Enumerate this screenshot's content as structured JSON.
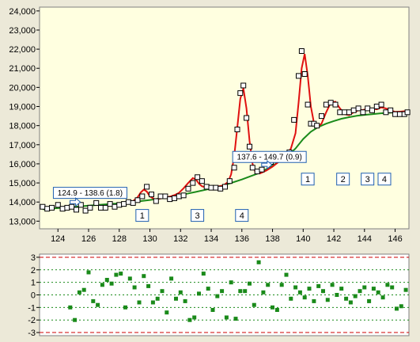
{
  "colors": {
    "background": "#ece9d8",
    "plot_background": "#ffffe0",
    "baseline": "#1a8a1a",
    "peaks_fit": "#e01010",
    "label_border": "#1f5fb0",
    "residual_marker": "#1a8a1a",
    "limit_line": "#cc0000",
    "grid": "#1a8a1a"
  },
  "icons": {
    "callout_arrow": "hollow-right-arrow-icon"
  },
  "chart_data": [
    {
      "type": "scatter",
      "title": "",
      "xlabel": "",
      "ylabel": "",
      "xlim": [
        122.8,
        146.9
      ],
      "ylim": [
        12600,
        24200
      ],
      "xticks": [
        124,
        126,
        128,
        130,
        132,
        134,
        136,
        138,
        140,
        142,
        144,
        146
      ],
      "xtick_labels": [
        "124",
        "126",
        "128",
        "130",
        "132",
        "134",
        "136",
        "138",
        "140",
        "142",
        "144",
        "146"
      ],
      "yticks": [
        13000,
        14000,
        15000,
        16000,
        17000,
        18000,
        19000,
        20000,
        21000,
        22000,
        23000,
        24000
      ],
      "ytick_labels": [
        "13,000",
        "14,000",
        "15,000",
        "16,000",
        "17,000",
        "18,000",
        "19,000",
        "20,000",
        "21,000",
        "22,000",
        "23,000",
        "24,000"
      ],
      "grid": false,
      "series": [
        {
          "role": "observed",
          "marker": "hollow-square",
          "x": [
            123.0,
            123.3,
            123.6,
            124.0,
            124.3,
            124.6,
            124.9,
            125.2,
            125.5,
            125.8,
            126.1,
            126.5,
            126.8,
            127.1,
            127.4,
            127.7,
            128.0,
            128.3,
            128.6,
            128.9,
            129.2,
            129.5,
            129.8,
            130.1,
            130.4,
            130.7,
            131.0,
            131.3,
            131.6,
            131.9,
            132.2,
            132.5,
            132.8,
            133.1,
            133.4,
            133.7,
            134.0,
            134.3,
            134.6,
            134.9,
            135.2,
            135.5,
            135.7,
            135.9,
            136.1,
            136.3,
            136.5,
            136.7,
            137.0,
            137.3,
            137.6,
            137.9,
            138.2,
            138.5,
            138.8,
            139.1,
            139.4,
            139.7,
            139.9,
            140.1,
            140.3,
            140.5,
            140.7,
            140.9,
            141.2,
            141.5,
            141.8,
            142.1,
            142.4,
            142.7,
            143.0,
            143.3,
            143.6,
            143.9,
            144.2,
            144.5,
            144.8,
            145.1,
            145.4,
            145.7,
            146.0,
            146.3,
            146.6,
            146.8
          ],
          "y": [
            13750,
            13650,
            13700,
            13850,
            13650,
            13700,
            13750,
            13600,
            13850,
            13550,
            13700,
            13950,
            13700,
            13700,
            13900,
            13750,
            13850,
            13900,
            14000,
            13950,
            14100,
            14300,
            14800,
            14400,
            14050,
            14300,
            14300,
            14150,
            14200,
            14300,
            14350,
            14700,
            15000,
            15300,
            15100,
            14800,
            14750,
            14750,
            14700,
            14800,
            15100,
            15800,
            17800,
            19700,
            20100,
            18400,
            16900,
            15800,
            15600,
            15700,
            16000,
            16100,
            16200,
            16300,
            16400,
            16600,
            18300,
            20600,
            21900,
            20700,
            19100,
            18100,
            18100,
            18000,
            18500,
            19100,
            19200,
            19100,
            18700,
            18700,
            18700,
            18800,
            18900,
            18700,
            18900,
            18800,
            19000,
            19100,
            18700,
            18800,
            18600,
            18600,
            18600,
            18700
          ]
        },
        {
          "role": "baseline",
          "line": true,
          "x": [
            123.0,
            124.0,
            125.0,
            126.0,
            127.0,
            128.0,
            129.0,
            130.0,
            131.0,
            132.0,
            133.0,
            134.0,
            135.0,
            136.0,
            137.0,
            137.5,
            138.0,
            138.5,
            139.0,
            139.5,
            140.0,
            140.5,
            141.0,
            141.5,
            142.0,
            142.5,
            143.0,
            143.5,
            144.0,
            144.5,
            145.0,
            145.5,
            146.0,
            146.5,
            146.8
          ],
          "y": [
            13620,
            13680,
            13740,
            13810,
            13870,
            13930,
            14010,
            14110,
            14230,
            14370,
            14530,
            14710,
            14920,
            15180,
            15480,
            15680,
            15900,
            16150,
            16430,
            16800,
            17300,
            17680,
            17930,
            18100,
            18240,
            18360,
            18440,
            18510,
            18560,
            18600,
            18640,
            18670,
            18690,
            18710,
            18720
          ]
        },
        {
          "role": "fit",
          "line": true,
          "x": [
            128.6,
            128.9,
            129.2,
            129.4,
            129.6,
            129.8,
            130.0,
            130.3,
            130.6,
            131.0,
            131.3,
            131.6,
            131.9,
            132.2,
            132.5,
            132.8,
            133.0,
            133.2,
            133.4,
            133.6,
            133.8,
            134.1,
            134.4,
            134.8,
            135.1,
            135.3,
            135.5,
            135.7,
            135.9,
            136.1,
            136.3,
            136.5,
            136.7,
            136.9,
            137.2,
            137.6,
            138.0,
            138.4,
            138.8,
            139.2,
            139.5,
            139.7,
            139.9,
            140.1,
            140.3,
            140.5,
            140.7,
            140.9,
            141.2,
            141.5,
            141.8,
            142.1,
            142.4,
            142.7,
            143.0,
            143.3,
            143.6,
            143.9,
            144.2,
            144.5,
            144.8,
            145.1,
            145.4,
            145.7,
            146.0,
            146.3,
            146.8
          ],
          "y": [
            13960,
            14050,
            14250,
            14500,
            14650,
            14550,
            14300,
            14150,
            14170,
            14230,
            14280,
            14360,
            14480,
            14720,
            15000,
            15250,
            15180,
            14960,
            14820,
            14780,
            14790,
            14790,
            14810,
            14870,
            15050,
            15450,
            16400,
            17900,
            19400,
            19950,
            18900,
            17200,
            16000,
            15520,
            15500,
            15650,
            15850,
            16100,
            16350,
            16800,
            17600,
            19200,
            21000,
            21750,
            20600,
            19000,
            18150,
            17900,
            18100,
            18700,
            19200,
            19250,
            18900,
            18600,
            18550,
            18700,
            18800,
            18820,
            18870,
            18900,
            18850,
            18950,
            18900,
            18800,
            18720,
            18730,
            18760
          ]
        }
      ],
      "peak_labels": [
        {
          "text": "1",
          "x": 129.5,
          "y": 13300
        },
        {
          "text": "3",
          "x": 133.1,
          "y": 13300
        },
        {
          "text": "4",
          "x": 136.0,
          "y": 13300
        },
        {
          "text": "1",
          "x": 140.3,
          "y": 15200
        },
        {
          "text": "2",
          "x": 142.6,
          "y": 15200
        },
        {
          "text": "3",
          "x": 144.2,
          "y": 15200
        },
        {
          "text": "4",
          "x": 145.3,
          "y": 15200
        }
      ],
      "annotations": [
        {
          "text": "124.9 - 138.6 (1.8)",
          "x": 126.1,
          "y": 14480,
          "arrow_x": 125.1,
          "arrow_y": 14000
        },
        {
          "text": "137.6 - 149.7 (0.9)",
          "x": 137.8,
          "y": 16360,
          "arrow_x": 137.6,
          "arrow_y": 15950
        }
      ]
    },
    {
      "type": "scatter",
      "title": "",
      "xlabel": "",
      "ylabel": "",
      "xlim": [
        122.8,
        146.9
      ],
      "ylim": [
        -3.25,
        3.25
      ],
      "yticks": [
        -3,
        -2,
        -1,
        0,
        1,
        2,
        3
      ],
      "ytick_labels": [
        "-3",
        "-2",
        "-1",
        "0",
        "1",
        "2",
        "3"
      ],
      "reference_lines": [
        {
          "y": 3,
          "style": "limit"
        },
        {
          "y": -3,
          "style": "limit"
        },
        {
          "y": 2,
          "style": "grid"
        },
        {
          "y": 1,
          "style": "grid"
        },
        {
          "y": 0,
          "style": "grid"
        },
        {
          "y": -1,
          "style": "grid"
        },
        {
          "y": -2,
          "style": "grid"
        }
      ],
      "series": [
        {
          "role": "residual",
          "marker": "filled-square",
          "x": [
            124.8,
            125.1,
            125.4,
            125.7,
            126.0,
            126.3,
            126.6,
            126.9,
            127.2,
            127.5,
            127.8,
            128.1,
            128.4,
            128.7,
            129.0,
            129.3,
            129.6,
            129.9,
            130.2,
            130.5,
            130.8,
            131.1,
            131.4,
            131.7,
            132.0,
            132.3,
            132.6,
            132.9,
            133.2,
            133.5,
            133.8,
            134.1,
            134.4,
            134.7,
            135.0,
            135.3,
            135.6,
            135.9,
            136.2,
            136.5,
            136.8,
            137.1,
            137.4,
            137.7,
            138.0,
            138.3,
            138.6,
            138.9,
            139.2,
            139.5,
            139.8,
            140.1,
            140.4,
            140.7,
            141.0,
            141.3,
            141.6,
            141.9,
            142.2,
            142.5,
            142.8,
            143.1,
            143.4,
            143.7,
            144.0,
            144.3,
            144.6,
            144.9,
            145.2,
            145.5,
            145.8,
            146.1,
            146.4,
            146.7
          ],
          "y": [
            -1.0,
            -2.0,
            0.2,
            0.4,
            1.8,
            -0.5,
            -0.8,
            0.8,
            1.2,
            0.9,
            1.6,
            1.7,
            -1.0,
            1.3,
            0.6,
            -0.6,
            1.5,
            0.7,
            -0.6,
            -0.3,
            0.3,
            -1.4,
            1.3,
            -0.3,
            0.2,
            -0.5,
            -2.0,
            -1.8,
            0.1,
            1.7,
            0.5,
            -1.2,
            -0.1,
            0.3,
            -1.8,
            1.0,
            -1.9,
            0.3,
            0.3,
            0.9,
            -0.8,
            2.6,
            0.2,
            0.8,
            -1.0,
            -1.2,
            0.8,
            1.6,
            -0.3,
            0.6,
            0.2,
            -0.2,
            0.5,
            -0.5,
            0.7,
            0.3,
            -0.4,
            0.8,
            0.0,
            0.5,
            -0.3,
            -0.6,
            -0.1,
            0.3,
            0.6,
            -0.5,
            0.5,
            0.2,
            -0.2,
            0.8,
            0.6,
            -1.1,
            -0.9,
            0.4
          ]
        }
      ]
    }
  ]
}
